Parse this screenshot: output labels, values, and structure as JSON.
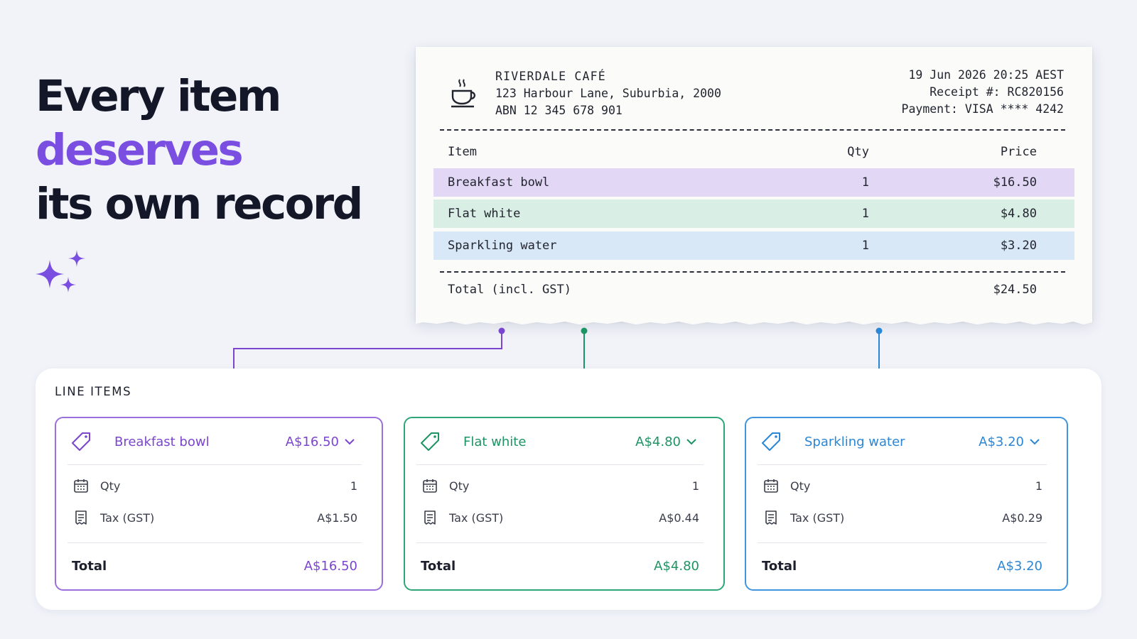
{
  "headline": {
    "line1": "Every item",
    "line2": "deserves",
    "line3": "its own record"
  },
  "receipt": {
    "shop_name": "RIVERDALE CAFÉ",
    "address": "123 Harbour Lane, Suburbia, 2000",
    "abn": "ABN 12 345 678 901",
    "datetime": "19 Jun 2026 20:25 AEST",
    "receipt_no": "Receipt #: RC820156",
    "payment": "Payment: VISA **** 4242",
    "headers": {
      "item": "Item",
      "qty": "Qty",
      "price": "Price"
    },
    "rows": [
      {
        "item": "Breakfast bowl",
        "qty": "1",
        "price": "$16.50",
        "color": "#e3d7f6"
      },
      {
        "item": "Flat white",
        "qty": "1",
        "price": "$4.80",
        "color": "#d9efe5"
      },
      {
        "item": "Sparkling water",
        "qty": "1",
        "price": "$3.20",
        "color": "#d8e8f7"
      }
    ],
    "total_label": "Total (incl. GST)",
    "total_value": "$24.50"
  },
  "line_items": {
    "title": "LINE ITEMS",
    "cards": [
      {
        "name": "Breakfast bowl",
        "amount": "A$16.50",
        "qty_label": "Qty",
        "qty": "1",
        "tax_label": "Tax (GST)",
        "tax": "A$1.50",
        "total_label": "Total",
        "total": "A$16.50",
        "color": "#7b45cf"
      },
      {
        "name": "Flat white",
        "amount": "A$4.80",
        "qty_label": "Qty",
        "qty": "1",
        "tax_label": "Tax (GST)",
        "tax": "A$0.44",
        "total_label": "Total",
        "total": "A$4.80",
        "color": "#1c9463"
      },
      {
        "name": "Sparkling water",
        "amount": "A$3.20",
        "qty_label": "Qty",
        "qty": "1",
        "tax_label": "Tax (GST)",
        "tax": "A$0.29",
        "total_label": "Total",
        "total": "A$3.20",
        "color": "#2b86d6"
      }
    ]
  },
  "icons": {
    "sparkles": "sparkles-icon",
    "cup": "coffee-cup-icon",
    "tag": "price-tag-icon",
    "calendar": "calendar-icon",
    "receipt": "receipt-icon",
    "chevron": "chevron-down-icon"
  }
}
